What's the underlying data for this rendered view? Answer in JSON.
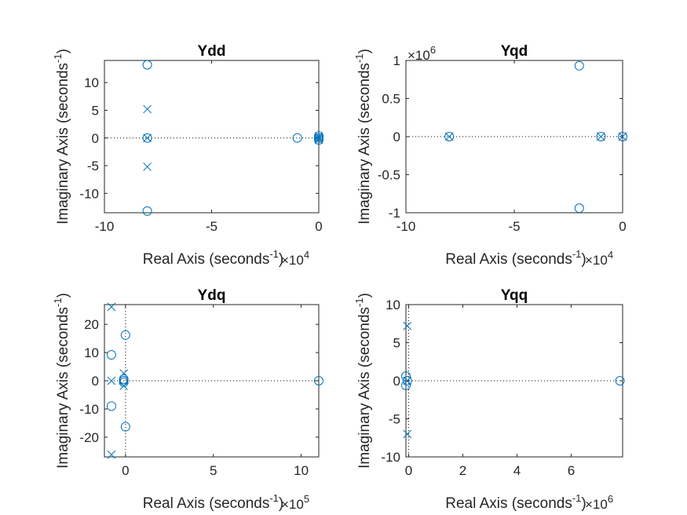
{
  "chart_data": [
    {
      "type": "scatter",
      "title": "Ydd",
      "xlabel": "Real Axis (seconds",
      "ylabel": "Imaginary Axis (seconds",
      "unit_exponent": "-1",
      "x_exponent": "4",
      "xlim": [
        -10,
        0
      ],
      "ylim": [
        -13.5,
        14
      ],
      "xticks": [
        -10,
        -5,
        0
      ],
      "yticks": [
        -10,
        -5,
        0,
        5,
        10
      ],
      "grid": false,
      "markers": {
        "zero": "o",
        "pole": "x"
      },
      "series": [
        {
          "name": "zeros",
          "points": [
            [
              -8,
              13.2
            ],
            [
              -8,
              0
            ],
            [
              -8,
              -13.2
            ],
            [
              -1,
              0
            ],
            [
              0,
              0.35
            ],
            [
              0,
              0
            ],
            [
              0,
              -0.35
            ]
          ]
        },
        {
          "name": "poles",
          "points": [
            [
              -8,
              5.2
            ],
            [
              -8,
              0
            ],
            [
              -8,
              -5.2
            ],
            [
              0,
              0.3
            ],
            [
              0,
              0
            ],
            [
              0,
              -0.3
            ]
          ]
        }
      ]
    },
    {
      "type": "scatter",
      "title": "Yqd",
      "xlabel": "Real Axis (seconds",
      "ylabel": "Imaginary Axis (seconds",
      "unit_exponent": "-1",
      "x_exponent": "4",
      "y_exponent": "6",
      "xlim": [
        -10,
        0
      ],
      "ylim": [
        -1,
        1
      ],
      "xticks": [
        -10,
        -5,
        0
      ],
      "yticks": [
        -1,
        -0.5,
        0,
        0.5,
        1
      ],
      "yticklabels": [
        "-1",
        "-0.5",
        "0",
        "0.5",
        "1"
      ],
      "grid": false,
      "markers": {
        "zero": "o",
        "pole": "x"
      },
      "series": [
        {
          "name": "zeros",
          "points": [
            [
              -8,
              0
            ],
            [
              -2,
              0.93
            ],
            [
              -2,
              -0.94
            ],
            [
              -1,
              0
            ],
            [
              0,
              0
            ]
          ]
        },
        {
          "name": "poles",
          "points": [
            [
              -8,
              0
            ],
            [
              -1,
              0
            ],
            [
              0,
              0
            ]
          ]
        }
      ]
    },
    {
      "type": "scatter",
      "title": "Ydq",
      "xlabel": "Real Axis (seconds",
      "ylabel": "Imaginary Axis (seconds",
      "unit_exponent": "-1",
      "x_exponent": "5",
      "xlim": [
        -1.2,
        11
      ],
      "ylim": [
        -27,
        27
      ],
      "xticks": [
        0,
        5,
        10
      ],
      "yticks": [
        -20,
        -10,
        0,
        10,
        20
      ],
      "grid": false,
      "markers": {
        "zero": "o",
        "pole": "x"
      },
      "series": [
        {
          "name": "zeros",
          "points": [
            [
              -0.8,
              9.2
            ],
            [
              -0.8,
              -9.0
            ],
            [
              0,
              16.2
            ],
            [
              0,
              -16.3
            ],
            [
              -0.1,
              0.6
            ],
            [
              -0.1,
              0
            ],
            [
              -0.1,
              -0.6
            ],
            [
              11,
              0
            ]
          ]
        },
        {
          "name": "poles",
          "points": [
            [
              -0.8,
              26.2
            ],
            [
              -0.8,
              0
            ],
            [
              -0.8,
              -26.2
            ],
            [
              -0.1,
              2.6
            ],
            [
              -0.1,
              -1.8
            ]
          ]
        }
      ]
    },
    {
      "type": "scatter",
      "title": "Yqq",
      "xlabel": "Real Axis (seconds",
      "ylabel": "Imaginary Axis (seconds",
      "unit_exponent": "-1",
      "x_exponent": "6",
      "xlim": [
        -0.1,
        7.9
      ],
      "ylim": [
        -10,
        10
      ],
      "xticks": [
        0,
        2,
        4,
        6
      ],
      "yticks": [
        -10,
        -5,
        0,
        5,
        10
      ],
      "grid": false,
      "markers": {
        "zero": "o",
        "pole": "x"
      },
      "series": [
        {
          "name": "zeros",
          "points": [
            [
              -0.1,
              0.6
            ],
            [
              -0.1,
              -0.6
            ],
            [
              -0.05,
              0
            ],
            [
              7.8,
              0
            ]
          ]
        },
        {
          "name": "poles",
          "points": [
            [
              -0.05,
              7.2
            ],
            [
              -0.05,
              -7.0
            ],
            [
              -0.05,
              0
            ]
          ]
        }
      ]
    }
  ],
  "colors": {
    "marker": "#0072BD",
    "axis": "#262626",
    "title": "#000000"
  }
}
